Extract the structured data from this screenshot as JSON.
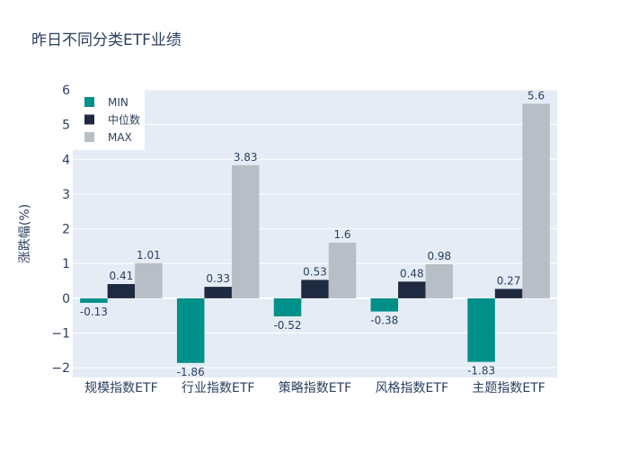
{
  "chart_data": {
    "type": "bar",
    "title": "昨日不同分类ETF业绩",
    "xlabel": "",
    "ylabel": "涨跌幅(%)",
    "ylim": [
      -2.28,
      6
    ],
    "yticks": [
      -2,
      -1,
      0,
      1,
      2,
      3,
      4,
      5,
      6
    ],
    "ytick_labels": [
      "−2",
      "−1",
      "0",
      "1",
      "2",
      "3",
      "4",
      "5",
      "6"
    ],
    "categories": [
      "规模指数ETF",
      "行业指数ETF",
      "策略指数ETF",
      "风格指数ETF",
      "主题指数ETF"
    ],
    "series": [
      {
        "name": "MIN",
        "color": "#00908a",
        "values": [
          -0.13,
          -1.86,
          -0.52,
          -0.38,
          -1.83
        ]
      },
      {
        "name": "中位数",
        "color": "#1f2a40",
        "values": [
          0.41,
          0.33,
          0.53,
          0.48,
          0.27
        ]
      },
      {
        "name": "MAX",
        "color": "#b8bec6",
        "values": [
          1.01,
          3.83,
          1.6,
          0.98,
          5.6
        ]
      }
    ],
    "grid": true,
    "legend": "top-left",
    "plot_bg": "#e5ecf6"
  }
}
